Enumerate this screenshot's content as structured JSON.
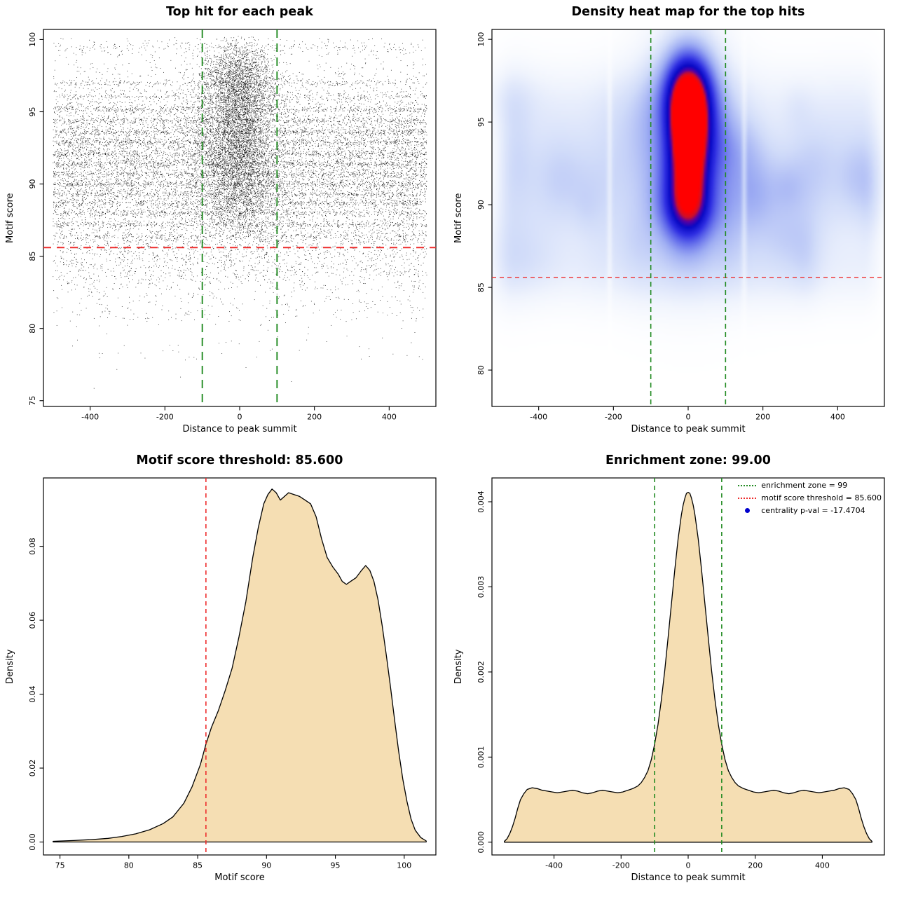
{
  "page": {
    "background": "#ffffff"
  },
  "chart_data": [
    {
      "type": "scatter",
      "title": "Top hit for each peak",
      "xlabel": "Distance to peak summit",
      "ylabel": "Motif score",
      "xlim": [
        -525,
        525
      ],
      "ylim": [
        74.6,
        100.7
      ],
      "xticks": [
        -400,
        -200,
        0,
        200,
        400
      ],
      "xtick_labels": [
        "-400",
        "-200",
        "0",
        "200",
        "400"
      ],
      "yticks": [
        75,
        80,
        85,
        90,
        95,
        100
      ],
      "ytick_labels": [
        "75",
        "80",
        "85",
        "90",
        "95",
        "100"
      ],
      "point_color": "#000000",
      "seed": 20,
      "hlines": [
        {
          "y": 85.6,
          "color": "#ee2c2c",
          "dash": [
            11,
            8
          ],
          "width": 1.9
        }
      ],
      "vlines": [
        {
          "x": -100,
          "color": "#228B22",
          "dash": [
            12,
            8
          ],
          "width": 1.9
        },
        {
          "x": 100,
          "color": "#228B22",
          "dash": [
            12,
            8
          ],
          "width": 1.9
        }
      ],
      "components": [
        {
          "n": 8500,
          "x": {
            "dist": "uniform",
            "min": -500,
            "max": 500
          },
          "y": {
            "dist": "normal",
            "mean": 91.6,
            "sd": 3.1,
            "min": 85.8,
            "max": 100.2
          }
        },
        {
          "n": 5200,
          "x": {
            "dist": "uniform",
            "min": -500,
            "max": 500
          },
          "y": {
            "dist": "bands",
            "values": [
              86.4,
              87.2,
              87.2,
              88.0,
              88.0,
              88.7,
              88.7,
              89.3,
              89.3,
              90.0,
              90.0,
              90.7,
              90.7,
              91.4,
              91.4,
              92.1,
              92.1,
              92.9,
              92.9,
              93.6,
              93.6,
              94.4,
              94.4,
              95.2,
              95.2,
              96.1,
              97.0
            ],
            "sd": 0.1
          }
        },
        {
          "n": 1500,
          "x": {
            "dist": "uniform",
            "min": -500,
            "max": 500
          },
          "y": {
            "dist": "normal",
            "mean": 85.2,
            "sd": 1.3,
            "min": 81.5,
            "max": 87.5
          }
        },
        {
          "n": 420,
          "x": {
            "dist": "uniform",
            "min": -500,
            "max": 500
          },
          "y": {
            "dist": "uniform",
            "min": 80.5,
            "max": 84.5
          }
        },
        {
          "n": 60,
          "x": {
            "dist": "uniform",
            "min": -490,
            "max": 490
          },
          "y": {
            "dist": "uniform",
            "min": 77.8,
            "max": 80.6
          }
        },
        {
          "n": 5,
          "x": {
            "dist": "uniform",
            "min": -400,
            "max": 300
          },
          "y": {
            "dist": "uniform",
            "min": 75.5,
            "max": 77.6
          }
        },
        {
          "n": 250,
          "x": {
            "dist": "uniform",
            "min": -500,
            "max": 500
          },
          "y": {
            "dist": "normal",
            "mean": 99.5,
            "sd": 0.3,
            "min": 98.9,
            "max": 100.2
          }
        },
        {
          "n": 2600,
          "x": {
            "dist": "normal",
            "mean": -5,
            "sd": 55,
            "min": -230,
            "max": 230
          },
          "y": {
            "dist": "normal",
            "mean": 95.8,
            "sd": 1.9,
            "min": 86,
            "max": 100.2
          }
        },
        {
          "n": 1700,
          "x": {
            "dist": "normal",
            "mean": -5,
            "sd": 50,
            "min": -220,
            "max": 220
          },
          "y": {
            "dist": "normal",
            "mean": 92.3,
            "sd": 1.6,
            "min": 86,
            "max": 100.2
          }
        },
        {
          "n": 1500,
          "x": {
            "dist": "normal",
            "mean": 0,
            "sd": 60,
            "min": -260,
            "max": 260
          },
          "y": {
            "dist": "normal",
            "mean": 89.3,
            "sd": 1.8,
            "min": 85,
            "max": 99
          }
        },
        {
          "n": 900,
          "x": {
            "dist": "normal",
            "mean": -5,
            "sd": 45,
            "min": -200,
            "max": 200
          },
          "y": {
            "dist": "normal",
            "mean": 97.6,
            "sd": 1.1,
            "min": 86,
            "max": 100.3
          }
        }
      ]
    },
    {
      "type": "heatmap",
      "title": "Density heat map for the top hits",
      "xlabel": "Distance to peak summit",
      "ylabel": "Motif score",
      "xlim": [
        -525,
        525
      ],
      "ylim": [
        77.8,
        100.6
      ],
      "xticks": [
        -400,
        -200,
        0,
        200,
        400
      ],
      "xtick_labels": [
        "-400",
        "-200",
        "0",
        "200",
        "400"
      ],
      "yticks": [
        80,
        85,
        90,
        95,
        100
      ],
      "ytick_labels": [
        "80",
        "85",
        "90",
        "95",
        "100"
      ],
      "seed": 99,
      "hlines": [
        {
          "y": 85.6,
          "color": "#ee2c2c",
          "dash": [
            6,
            5
          ],
          "width": 1.3
        }
      ],
      "vlines": [
        {
          "x": -100,
          "color": "#228B22",
          "dash": [
            7,
            5
          ],
          "width": 1.6
        },
        {
          "x": 100,
          "color": "#228B22",
          "dash": [
            7,
            5
          ],
          "width": 1.6
        }
      ],
      "field": {
        "scale": 0.69,
        "xfade": [
          465,
          545
        ],
        "white_streaks": [
          {
            "x": -210,
            "sx": 5,
            "depth": 0.45
          },
          {
            "x": 150,
            "sx": 5,
            "depth": 0.4
          }
        ],
        "components": [
          {
            "type": "band",
            "y0": 91.4,
            "sy": 3.3,
            "amp": 0.2
          },
          {
            "type": "band",
            "y0": 85.8,
            "sy": 1.4,
            "amp": 0.07
          },
          {
            "type": "band",
            "y0": 96.5,
            "sy": 1.5,
            "amp": 0.05
          },
          {
            "type": "gauss",
            "x0": 0,
            "y0": 96.8,
            "sx": 45,
            "sy": 1.8,
            "amp": 1.15
          },
          {
            "type": "gauss",
            "x0": 0,
            "y0": 94.6,
            "sx": 33,
            "sy": 1.5,
            "amp": 0.45
          },
          {
            "type": "gauss",
            "x0": 0,
            "y0": 92.7,
            "sx": 36,
            "sy": 2.1,
            "amp": 0.72
          },
          {
            "type": "gauss",
            "x0": 4,
            "y0": 89.9,
            "sx": 42,
            "sy": 1.7,
            "amp": 0.5
          },
          {
            "type": "gauss",
            "x0": 0,
            "y0": 94.3,
            "sx": 80,
            "sy": 4.6,
            "amp": 0.28
          },
          {
            "type": "gauss",
            "x0": 0,
            "y0": 87.6,
            "sx": 120,
            "sy": 2.5,
            "amp": 0.12
          }
        ],
        "noise": {
          "n": 46,
          "amp_min": 0.03,
          "amp_max": 0.085,
          "sx_min": 22,
          "sx_max": 70,
          "sy_min": 0.9,
          "sy_max": 2.6,
          "y_min": 86.5,
          "y_max": 96.5,
          "x_min": -500,
          "x_max": 500
        },
        "colormap": [
          [
            0,
            255,
            255,
            255
          ],
          [
            0.07,
            240,
            244,
            253
          ],
          [
            0.18,
            208,
            219,
            249
          ],
          [
            0.32,
            158,
            173,
            243
          ],
          [
            0.46,
            100,
            110,
            235
          ],
          [
            0.6,
            45,
            45,
            225
          ],
          [
            0.74,
            8,
            8,
            196
          ],
          [
            0.84,
            90,
            0,
            160
          ],
          [
            0.91,
            205,
            15,
            40
          ],
          [
            1,
            255,
            0,
            0
          ]
        ]
      }
    },
    {
      "type": "area",
      "title": "Motif score threshold: 85.600",
      "xlabel": "Motif score",
      "ylabel": "Density",
      "fill": "#F5DEB3",
      "xlim": [
        73.8,
        102.3
      ],
      "ylim": [
        -0.0035,
        0.0985
      ],
      "xticks": [
        75,
        80,
        85,
        90,
        95,
        100
      ],
      "xtick_labels": [
        "75",
        "80",
        "85",
        "90",
        "95",
        "100"
      ],
      "yticks": [
        0,
        0.02,
        0.04,
        0.06,
        0.08
      ],
      "ytick_labels": [
        "0.00",
        "0.02",
        "0.04",
        "0.06",
        "0.08"
      ],
      "vlines": [
        {
          "x": 85.6,
          "color": "#ee2c2c",
          "dash": [
            6,
            5
          ],
          "width": 1.6
        }
      ],
      "curve": {
        "x": [
          74.5,
          76,
          77.5,
          78.5,
          79.5,
          80.5,
          81.5,
          82.5,
          83.2,
          84,
          84.6,
          85.2,
          85.6,
          86,
          86.5,
          87,
          87.5,
          88,
          88.5,
          89,
          89.4,
          89.8,
          90.1,
          90.4,
          90.7,
          91,
          91.3,
          91.6,
          92,
          92.4,
          92.8,
          93.2,
          93.6,
          94,
          94.4,
          94.8,
          95.2,
          95.5,
          95.8,
          96.1,
          96.5,
          96.9,
          97.2,
          97.5,
          97.8,
          98.1,
          98.4,
          98.7,
          99,
          99.3,
          99.6,
          99.9,
          100.2,
          100.5,
          100.8,
          101.2,
          101.6
        ],
        "y": [
          0.0002,
          0.0004,
          0.0007,
          0.001,
          0.0015,
          0.0022,
          0.0033,
          0.005,
          0.0068,
          0.0105,
          0.015,
          0.021,
          0.0265,
          0.031,
          0.0355,
          0.041,
          0.047,
          0.0555,
          0.065,
          0.077,
          0.085,
          0.0915,
          0.094,
          0.0955,
          0.0945,
          0.0925,
          0.0935,
          0.0945,
          0.094,
          0.0935,
          0.0925,
          0.0915,
          0.088,
          0.082,
          0.077,
          0.0745,
          0.0725,
          0.0705,
          0.0697,
          0.0705,
          0.0715,
          0.0735,
          0.0748,
          0.0735,
          0.0705,
          0.0655,
          0.0585,
          0.0505,
          0.042,
          0.033,
          0.0245,
          0.017,
          0.011,
          0.0062,
          0.0032,
          0.0012,
          0.0003
        ]
      }
    },
    {
      "type": "area",
      "title": "Enrichment zone: 99.00",
      "xlabel": "Distance to peak summit",
      "ylabel": "Density",
      "fill": "#F5DEB3",
      "xlim": [
        -585,
        585
      ],
      "ylim": [
        -0.00015,
        0.00428
      ],
      "xticks": [
        -400,
        -200,
        0,
        200,
        400
      ],
      "xtick_labels": [
        "-400",
        "-200",
        "0",
        "200",
        "400"
      ],
      "yticks": [
        0,
        0.001,
        0.002,
        0.003,
        0.004
      ],
      "ytick_labels": [
        "0.000",
        "0.001",
        "0.002",
        "0.003",
        "0.004"
      ],
      "vlines": [
        {
          "x": -100,
          "color": "#228B22",
          "dash": [
            6,
            5
          ],
          "width": 1.6
        },
        {
          "x": 100,
          "color": "#228B22",
          "dash": [
            6,
            5
          ],
          "width": 1.6
        }
      ],
      "legend": [
        {
          "swatch": "line",
          "color": "#228B22",
          "label": "enrichment zone = 99"
        },
        {
          "swatch": "line",
          "color": "#ee2c2c",
          "label": "motif score threshold = 85.600"
        },
        {
          "swatch": "dot",
          "color": "#0000cd",
          "label": "centrality p-val = -17.4704"
        }
      ],
      "curve": {
        "x": [
          -548,
          -540,
          -532,
          -524,
          -516,
          -508,
          -500,
          -490,
          -480,
          -465,
          -450,
          -435,
          -420,
          -405,
          -390,
          -375,
          -360,
          -345,
          -330,
          -315,
          -300,
          -285,
          -270,
          -255,
          -240,
          -225,
          -210,
          -195,
          -180,
          -165,
          -150,
          -140,
          -130,
          -120,
          -110,
          -100,
          -90,
          -80,
          -70,
          -60,
          -50,
          -40,
          -30,
          -20,
          -15,
          -10,
          -5,
          0,
          5,
          10,
          15,
          20,
          30,
          40,
          50,
          60,
          70,
          80,
          90,
          100,
          110,
          120,
          130,
          140,
          150,
          165,
          180,
          195,
          210,
          225,
          240,
          255,
          270,
          285,
          300,
          315,
          330,
          345,
          360,
          375,
          390,
          405,
          420,
          435,
          450,
          465,
          480,
          490,
          500,
          508,
          516,
          524,
          532,
          540,
          548
        ],
        "y": [
          1e-05,
          4e-05,
          0.0001,
          0.00018,
          0.00028,
          0.0004,
          0.0005,
          0.00057,
          0.00062,
          0.00064,
          0.00063,
          0.00061,
          0.0006,
          0.00059,
          0.00058,
          0.00059,
          0.0006,
          0.00061,
          0.0006,
          0.00058,
          0.00057,
          0.00058,
          0.0006,
          0.00061,
          0.0006,
          0.00059,
          0.00058,
          0.00059,
          0.00061,
          0.00063,
          0.00066,
          0.0007,
          0.00076,
          0.00084,
          0.00097,
          0.00115,
          0.00138,
          0.00167,
          0.00201,
          0.0024,
          0.0028,
          0.0032,
          0.00356,
          0.00385,
          0.00396,
          0.00404,
          0.0041,
          0.00411,
          0.0041,
          0.00404,
          0.00396,
          0.00385,
          0.00356,
          0.0032,
          0.0028,
          0.0024,
          0.00201,
          0.00167,
          0.00138,
          0.00115,
          0.00097,
          0.00084,
          0.00076,
          0.0007,
          0.00066,
          0.00063,
          0.00061,
          0.00059,
          0.00058,
          0.00059,
          0.0006,
          0.00061,
          0.0006,
          0.00058,
          0.00057,
          0.00058,
          0.0006,
          0.00061,
          0.0006,
          0.00059,
          0.00058,
          0.00059,
          0.0006,
          0.00061,
          0.00063,
          0.00064,
          0.00062,
          0.00057,
          0.0005,
          0.0004,
          0.00028,
          0.00018,
          0.0001,
          4e-05,
          1e-05
        ]
      }
    }
  ]
}
